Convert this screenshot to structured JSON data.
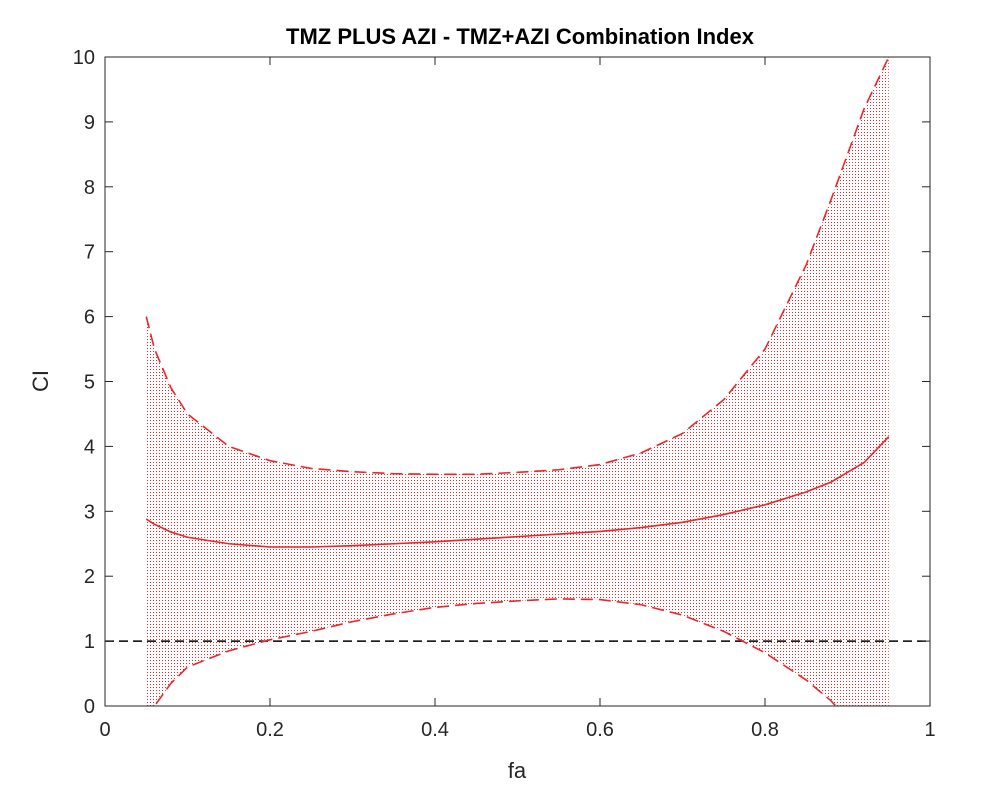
{
  "chart_data": {
    "type": "line",
    "title": "TMZ PLUS AZI - TMZ+AZI Combination Index",
    "xlabel": "fa",
    "ylabel": "CI",
    "xlim": [
      0,
      1
    ],
    "ylim": [
      0,
      10
    ],
    "xticks": [
      "0",
      "0.2",
      "0.4",
      "0.6",
      "0.8",
      "1"
    ],
    "yticks": [
      "0",
      "1",
      "2",
      "3",
      "4",
      "5",
      "6",
      "7",
      "8",
      "9",
      "10"
    ],
    "grid": false,
    "legend": "none",
    "x": [
      0.05,
      0.06,
      0.08,
      0.1,
      0.15,
      0.2,
      0.25,
      0.3,
      0.35,
      0.4,
      0.45,
      0.5,
      0.55,
      0.6,
      0.65,
      0.7,
      0.75,
      0.8,
      0.85,
      0.88,
      0.9,
      0.92,
      0.95
    ],
    "series": [
      {
        "role": "ci-estimate",
        "style": "solid",
        "color": "#e8262b",
        "values": [
          2.88,
          2.8,
          2.68,
          2.6,
          2.5,
          2.45,
          2.45,
          2.47,
          2.5,
          2.53,
          2.57,
          2.61,
          2.65,
          2.69,
          2.75,
          2.83,
          2.95,
          3.1,
          3.3,
          3.45,
          3.6,
          3.75,
          4.15
        ]
      },
      {
        "role": "upper-bound",
        "style": "dashed",
        "color": "#e8262b",
        "values": [
          6.0,
          5.5,
          4.9,
          4.5,
          4.0,
          3.78,
          3.66,
          3.61,
          3.58,
          3.57,
          3.57,
          3.6,
          3.64,
          3.72,
          3.9,
          4.2,
          4.72,
          5.5,
          6.8,
          7.8,
          8.5,
          9.2,
          10.0
        ]
      },
      {
        "role": "lower-bound",
        "style": "dashed",
        "color": "#e8262b",
        "values": [
          -0.2,
          0.0,
          0.35,
          0.6,
          0.85,
          1.02,
          1.15,
          1.3,
          1.42,
          1.52,
          1.58,
          1.62,
          1.65,
          1.64,
          1.56,
          1.4,
          1.15,
          0.82,
          0.4,
          0.08,
          -0.2,
          -0.4,
          -0.6
        ]
      }
    ],
    "reference_line": {
      "y": 1,
      "style": "dashed",
      "color": "#000000"
    },
    "band_fill": {
      "color": "#e8262b",
      "pattern": "dotted"
    }
  }
}
